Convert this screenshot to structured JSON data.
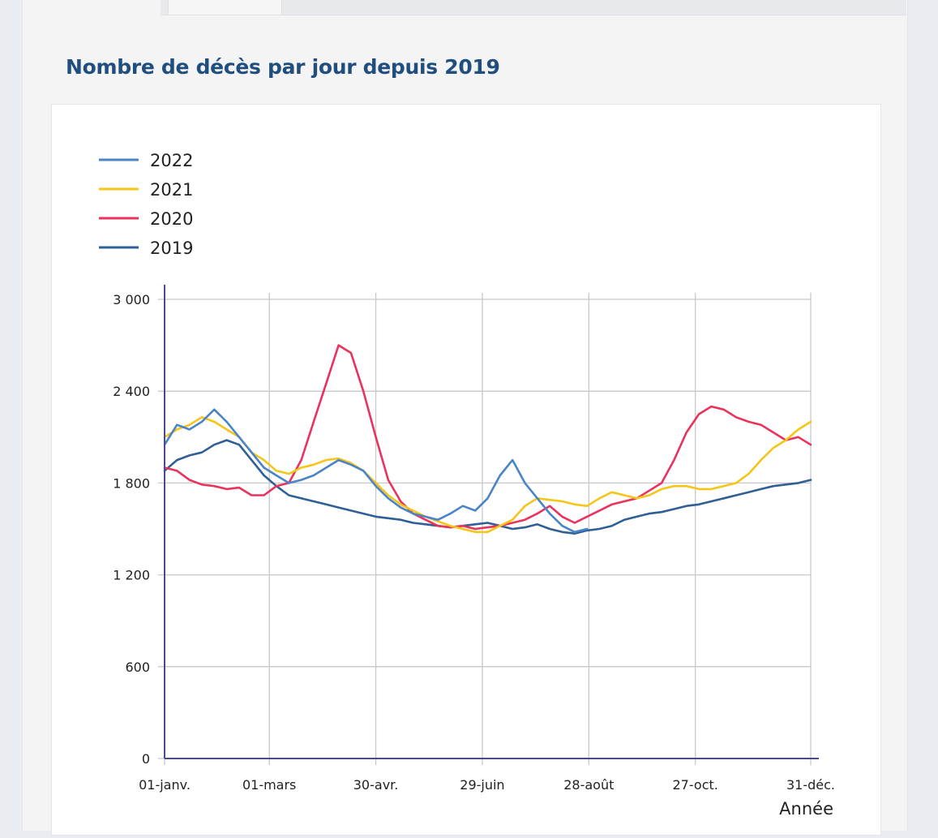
{
  "page": {
    "tabs": [
      {
        "label": "",
        "active": true
      }
    ]
  },
  "chart_data": {
    "type": "line",
    "title": "Nombre de décès par jour depuis 2019",
    "xlabel": "Année",
    "ylabel": "",
    "x_unit": "day_of_year",
    "xlim": [
      0,
      364
    ],
    "ylim": [
      0,
      3000
    ],
    "yticks": [
      0,
      600,
      1200,
      1800,
      2400,
      3000
    ],
    "ytick_labels": [
      "0",
      "600",
      "1 200",
      "1 800",
      "2 400",
      "3 000"
    ],
    "xticks": [
      0,
      59,
      119,
      179,
      239,
      299,
      364
    ],
    "xtick_labels": [
      "01-janv.",
      "01-mars",
      "30-avr.",
      "29-juin",
      "28-août",
      "27-oct.",
      "31-déc."
    ],
    "grid": true,
    "legend_position": "top-left",
    "x": [
      0,
      7,
      14,
      21,
      28,
      35,
      42,
      49,
      56,
      63,
      70,
      77,
      84,
      91,
      98,
      105,
      112,
      119,
      126,
      133,
      140,
      147,
      154,
      161,
      168,
      175,
      182,
      189,
      196,
      203,
      210,
      217,
      224,
      231,
      238,
      245,
      252,
      259,
      266,
      273,
      280,
      287,
      294,
      301,
      308,
      315,
      322,
      329,
      336,
      343,
      350,
      357,
      364
    ],
    "series": [
      {
        "name": "2022",
        "color": "#4a84c8",
        "values": [
          2050,
          2180,
          2150,
          2200,
          2280,
          2200,
          2100,
          2000,
          1900,
          1850,
          1800,
          1820,
          1850,
          1900,
          1950,
          1920,
          1880,
          1780,
          1700,
          1640,
          1600,
          1580,
          1560,
          1600,
          1650,
          1620,
          1700,
          1850,
          1950,
          1800,
          1700,
          1600,
          1520,
          1480,
          1500
        ]
      },
      {
        "name": "2021",
        "color": "#f5c518",
        "values": [
          2100,
          2150,
          2180,
          2230,
          2200,
          2150,
          2100,
          2000,
          1950,
          1880,
          1860,
          1900,
          1920,
          1950,
          1960,
          1930,
          1880,
          1800,
          1720,
          1660,
          1620,
          1580,
          1550,
          1520,
          1500,
          1480,
          1480,
          1520,
          1560,
          1650,
          1700,
          1690,
          1680,
          1660,
          1650,
          1700,
          1740,
          1720,
          1700,
          1720,
          1760,
          1780,
          1780,
          1760,
          1760,
          1780,
          1800,
          1860,
          1950,
          2030,
          2080,
          2150,
          2200
        ]
      },
      {
        "name": "2020",
        "color": "#e8335c",
        "values": [
          1900,
          1880,
          1820,
          1790,
          1780,
          1760,
          1770,
          1720,
          1720,
          1780,
          1800,
          1950,
          2200,
          2450,
          2700,
          2650,
          2400,
          2100,
          1820,
          1680,
          1600,
          1560,
          1520,
          1510,
          1520,
          1500,
          1510,
          1520,
          1540,
          1560,
          1600,
          1650,
          1580,
          1540,
          1580,
          1620,
          1660,
          1680,
          1700,
          1750,
          1800,
          1950,
          2130,
          2250,
          2300,
          2280,
          2230,
          2200,
          2180,
          2130,
          2080,
          2100,
          2050
        ]
      },
      {
        "name": "2019",
        "color": "#2f5f94",
        "values": [
          1880,
          1950,
          1980,
          2000,
          2050,
          2080,
          2050,
          1950,
          1850,
          1780,
          1720,
          1700,
          1680,
          1660,
          1640,
          1620,
          1600,
          1580,
          1570,
          1560,
          1540,
          1530,
          1520,
          1510,
          1520,
          1530,
          1540,
          1520,
          1500,
          1510,
          1530,
          1500,
          1480,
          1470,
          1490,
          1500,
          1520,
          1560,
          1580,
          1600,
          1610,
          1630,
          1650,
          1660,
          1680,
          1700,
          1720,
          1740,
          1760,
          1780,
          1790,
          1800,
          1820
        ]
      }
    ]
  }
}
